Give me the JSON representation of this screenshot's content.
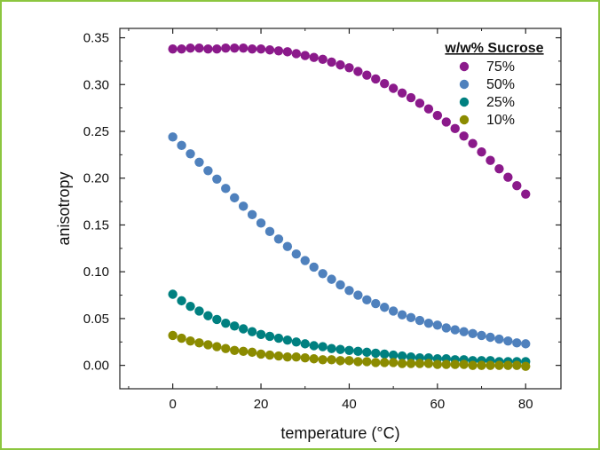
{
  "chart_data": {
    "type": "scatter",
    "title": "",
    "xlabel": "temperature (°C)",
    "ylabel": "anisotropy",
    "xlim": [
      -12,
      88
    ],
    "ylim": [
      -0.025,
      0.36
    ],
    "xticks": [
      0,
      20,
      40,
      60,
      80
    ],
    "yticks": [
      0.0,
      0.05,
      0.1,
      0.15,
      0.2,
      0.25,
      0.3,
      0.35
    ],
    "xtick_labels": [
      "0",
      "20",
      "40",
      "60",
      "80"
    ],
    "ytick_labels": [
      "0.00",
      "0.05",
      "0.10",
      "0.15",
      "0.20",
      "0.25",
      "0.30",
      "0.35"
    ],
    "grid": false,
    "legend": {
      "title": "w/w% Sucrose",
      "position": "top-right"
    },
    "x": [
      0,
      2,
      4,
      6,
      8,
      10,
      12,
      14,
      16,
      18,
      20,
      22,
      24,
      26,
      28,
      30,
      32,
      34,
      36,
      38,
      40,
      42,
      44,
      46,
      48,
      50,
      52,
      54,
      56,
      58,
      60,
      62,
      64,
      66,
      68,
      70,
      72,
      74,
      76,
      78,
      80
    ],
    "series": [
      {
        "name": "75%",
        "color": "#8b1a8b",
        "values": [
          0.338,
          0.338,
          0.339,
          0.339,
          0.338,
          0.338,
          0.339,
          0.339,
          0.339,
          0.338,
          0.338,
          0.337,
          0.336,
          0.335,
          0.333,
          0.331,
          0.329,
          0.327,
          0.324,
          0.321,
          0.318,
          0.314,
          0.31,
          0.306,
          0.301,
          0.296,
          0.291,
          0.286,
          0.28,
          0.274,
          0.267,
          0.26,
          0.253,
          0.245,
          0.237,
          0.228,
          0.219,
          0.21,
          0.201,
          0.192,
          0.183
        ]
      },
      {
        "name": "50%",
        "color": "#4f81bd",
        "values": [
          0.244,
          0.235,
          0.226,
          0.217,
          0.208,
          0.199,
          0.189,
          0.179,
          0.17,
          0.161,
          0.152,
          0.143,
          0.135,
          0.127,
          0.119,
          0.112,
          0.105,
          0.098,
          0.092,
          0.086,
          0.08,
          0.075,
          0.07,
          0.066,
          0.062,
          0.058,
          0.054,
          0.051,
          0.048,
          0.045,
          0.043,
          0.04,
          0.038,
          0.036,
          0.034,
          0.032,
          0.03,
          0.028,
          0.026,
          0.024,
          0.023
        ]
      },
      {
        "name": "25%",
        "color": "#008080",
        "values": [
          0.076,
          0.069,
          0.063,
          0.058,
          0.053,
          0.049,
          0.045,
          0.042,
          0.039,
          0.036,
          0.033,
          0.031,
          0.029,
          0.027,
          0.025,
          0.023,
          0.021,
          0.02,
          0.018,
          0.017,
          0.016,
          0.015,
          0.014,
          0.013,
          0.012,
          0.011,
          0.01,
          0.009,
          0.008,
          0.008,
          0.007,
          0.007,
          0.006,
          0.006,
          0.005,
          0.005,
          0.005,
          0.004,
          0.004,
          0.004,
          0.004
        ]
      },
      {
        "name": "10%",
        "color": "#8b8b00",
        "values": [
          0.032,
          0.029,
          0.026,
          0.024,
          0.022,
          0.02,
          0.018,
          0.016,
          0.015,
          0.014,
          0.012,
          0.011,
          0.01,
          0.009,
          0.009,
          0.008,
          0.007,
          0.006,
          0.006,
          0.005,
          0.005,
          0.004,
          0.004,
          0.003,
          0.003,
          0.003,
          0.002,
          0.002,
          0.002,
          0.002,
          0.001,
          0.001,
          0.001,
          0.001,
          0.0,
          0.0,
          0.0,
          0.0,
          0.0,
          0.0,
          -0.001
        ]
      }
    ]
  }
}
